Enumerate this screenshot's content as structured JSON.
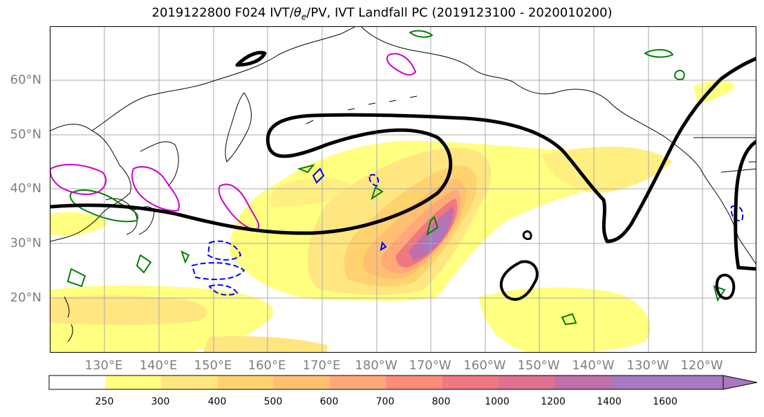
{
  "title": {
    "date_part": "2019122800 F024 IVT/",
    "theta": "θ",
    "theta_sub": "e",
    "rest": "/PV, IVT Landfall PC (2019123100 - 2020010200)"
  },
  "lat_labels": [
    "60°N",
    "50°N",
    "40°N",
    "30°N",
    "20°N"
  ],
  "lon_labels": [
    "130°E",
    "140°E",
    "150°E",
    "160°E",
    "170°E",
    "180°W",
    "170°W",
    "160°W",
    "150°W",
    "140°W",
    "130°W",
    "120°W"
  ],
  "colorbar": {
    "ticks": [
      "250",
      "300",
      "400",
      "500",
      "600",
      "700",
      "800",
      "1000",
      "1200",
      "1400",
      "1600"
    ],
    "colors": [
      "#ffffff",
      "#ffff80",
      "#ffe680",
      "#ffd270",
      "#ffbf70",
      "#ffa878",
      "#ff8c78",
      "#f07880",
      "#e07090",
      "#c070a8",
      "#a878c0"
    ],
    "extend": "max"
  },
  "contour_colors": {
    "ivt_landfall_pc": "#000000",
    "pv_green": "#008000",
    "pv_blue": "#0000ff",
    "pv_magenta": "#cc00cc",
    "coastline": "#000000",
    "gridline": "#aaaaaa"
  },
  "map_data": {
    "projection": "PlateCarree",
    "lon_range": [
      120,
      250
    ],
    "lat_range": [
      10,
      70
    ],
    "gridlines": true
  }
}
